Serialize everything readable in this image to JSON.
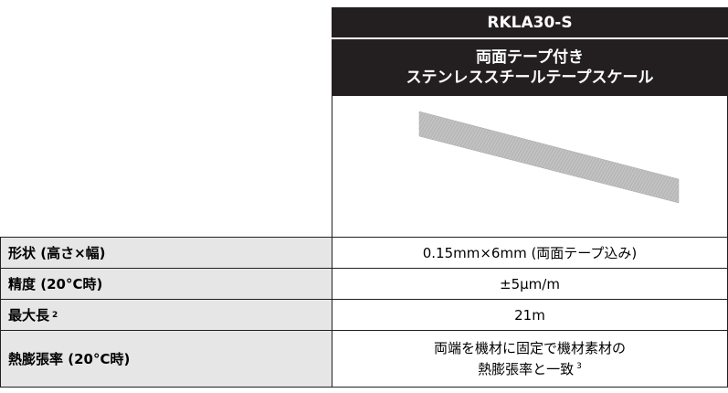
{
  "header": {
    "product": "RKLA30-S",
    "description": [
      "両面テープ付き",
      "ステンレススチールテープスケール"
    ]
  },
  "rows": [
    {
      "label": "形状 (高さ×幅)",
      "value": [
        "0.15mm×6mm (両面テープ込み)"
      ]
    },
    {
      "label": "精度 (20°C時)",
      "value": [
        "±5µm/m"
      ]
    },
    {
      "label": "最大長",
      "label_note": "2",
      "value": [
        "21m"
      ]
    },
    {
      "label": "熱膨張率 (20°C時)",
      "value": [
        "両端を機材に固定で機材素材の",
        "熱膨張率と一致"
      ],
      "value_note": "3"
    }
  ]
}
